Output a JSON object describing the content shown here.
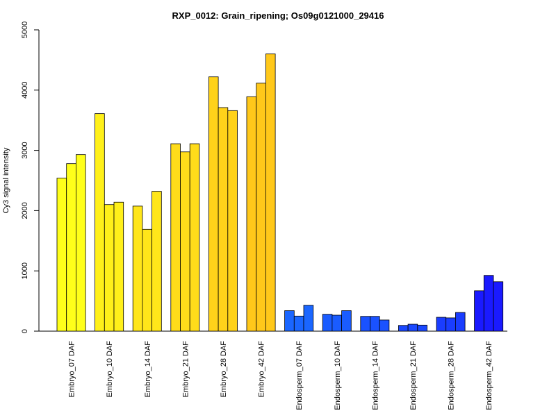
{
  "chart_data": {
    "type": "bar",
    "title": "RXP_0012: Grain_ripening; Os09g0121000_29416",
    "xlabel": "",
    "ylabel": "Cy3 signal intensity",
    "ylim": [
      0,
      5000
    ],
    "yticks": [
      0,
      1000,
      2000,
      3000,
      4000,
      5000
    ],
    "grid": false,
    "legend": "none",
    "replicates_per_group": 3,
    "groups": [
      {
        "label": "Embryo_07 DAF",
        "color": "#FFFF1A",
        "values": [
          2540,
          2780,
          2930
        ]
      },
      {
        "label": "Embryo_10 DAF",
        "color": "#FFF01A",
        "values": [
          3610,
          2100,
          2140
        ]
      },
      {
        "label": "Embryo_14 DAF",
        "color": "#FFE61A",
        "values": [
          2075,
          1690,
          2320
        ]
      },
      {
        "label": "Embryo_21 DAF",
        "color": "#FFDC1A",
        "values": [
          3110,
          2975,
          3110
        ]
      },
      {
        "label": "Embryo_28 DAF",
        "color": "#FFD21A",
        "values": [
          4220,
          3710,
          3660
        ]
      },
      {
        "label": "Embryo_42 DAF",
        "color": "#FFC81A",
        "values": [
          3890,
          4115,
          4600
        ]
      },
      {
        "label": "Endosperm_07 DAF",
        "color": "#1A66FF",
        "values": [
          340,
          250,
          430
        ]
      },
      {
        "label": "Endosperm_10 DAF",
        "color": "#1A5CFF",
        "values": [
          280,
          265,
          340
        ]
      },
      {
        "label": "Endosperm_14 DAF",
        "color": "#1A52FF",
        "values": [
          245,
          245,
          185
        ]
      },
      {
        "label": "Endosperm_21 DAF",
        "color": "#1A48FF",
        "values": [
          95,
          115,
          100
        ]
      },
      {
        "label": "Endosperm_28 DAF",
        "color": "#1A3DFF",
        "values": [
          230,
          220,
          310
        ]
      },
      {
        "label": "Endosperm_42 DAF",
        "color": "#1A1AFF",
        "values": [
          670,
          925,
          820
        ]
      }
    ]
  }
}
